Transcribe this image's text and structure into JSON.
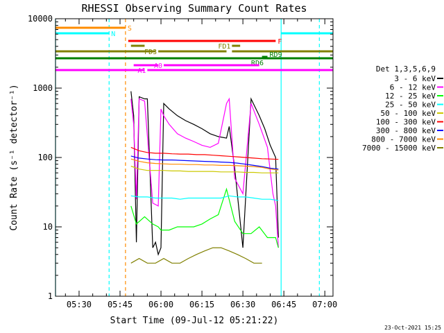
{
  "chart_data": {
    "type": "line",
    "title": "RHESSI Observing Summary Count Rates",
    "xlabel": "Start Time (09-Jul-12 05:21:22)",
    "ylabel": "Count Rate (s⁻¹ detector⁻¹)",
    "ylog": true,
    "xlim": [
      "05:21:22",
      "07:03:00"
    ],
    "ylim": [
      1,
      10000
    ],
    "x_ticks": [
      "05:30",
      "05:45",
      "06:00",
      "06:15",
      "06:30",
      "06:45",
      "07:00"
    ],
    "y_ticks": [
      "1",
      "10",
      "100",
      "1000",
      "10000"
    ],
    "legend_title": "Det 1,3,5,6,9",
    "legend_position": "right",
    "footer_date": "23-Oct-2021 15:25",
    "series": [
      {
        "name": "3 - 6 keV",
        "color": "#000000",
        "x": [
          "05:49",
          "05:50",
          "05:51",
          "05:52",
          "05:54",
          "05:55",
          "05:57",
          "05:58",
          "05:59",
          "06:00",
          "06:01",
          "06:03",
          "06:06",
          "06:09",
          "06:12",
          "06:15",
          "06:18",
          "06:21",
          "06:24",
          "06:25",
          "06:27",
          "06:30",
          "06:33",
          "06:36",
          "06:38",
          "06:40",
          "06:42",
          "06:43"
        ],
        "y": [
          900,
          400,
          6,
          750,
          700,
          700,
          5,
          6,
          4,
          5,
          600,
          500,
          400,
          340,
          300,
          260,
          220,
          200,
          190,
          280,
          70,
          5,
          700,
          400,
          260,
          150,
          100,
          7
        ]
      },
      {
        "name": "6 - 12 keV",
        "color": "#ff00ff",
        "x": [
          "05:49",
          "05:50",
          "05:51",
          "05:52",
          "05:54",
          "05:57",
          "05:59",
          "06:00",
          "06:01",
          "06:03",
          "06:06",
          "06:09",
          "06:12",
          "06:15",
          "06:18",
          "06:21",
          "06:24",
          "06:25",
          "06:27",
          "06:30",
          "06:33",
          "06:36",
          "06:39",
          "06:41",
          "06:42",
          "06:43"
        ],
        "y": [
          700,
          300,
          25,
          700,
          650,
          22,
          20,
          500,
          400,
          300,
          220,
          190,
          170,
          150,
          140,
          160,
          600,
          700,
          50,
          30,
          600,
          300,
          140,
          30,
          20,
          5
        ]
      },
      {
        "name": "12 - 25 keV",
        "color": "#00ff00",
        "x": [
          "05:49",
          "05:51",
          "05:54",
          "05:57",
          "05:59",
          "06:00",
          "06:03",
          "06:06",
          "06:09",
          "06:12",
          "06:15",
          "06:18",
          "06:21",
          "06:24",
          "06:27",
          "06:30",
          "06:33",
          "06:36",
          "06:39",
          "06:42",
          "06:43"
        ],
        "y": [
          20,
          11,
          14,
          11,
          10,
          9,
          9,
          10,
          10,
          10,
          11,
          13,
          15,
          35,
          12,
          8,
          8,
          10,
          7,
          7,
          5
        ]
      },
      {
        "name": "25 - 50 keV",
        "color": "#00ffff",
        "x": [
          "05:49",
          "05:52",
          "05:55",
          "05:58",
          "06:01",
          "06:04",
          "06:07",
          "06:10",
          "06:13",
          "06:16",
          "06:19",
          "06:22",
          "06:25",
          "06:28",
          "06:31",
          "06:34",
          "06:37",
          "06:40",
          "06:43"
        ],
        "y": [
          28,
          27,
          27,
          26,
          26,
          26,
          25,
          26,
          26,
          26,
          26,
          26,
          28,
          27,
          27,
          26,
          25,
          25,
          24
        ]
      },
      {
        "name": "50 - 100 keV",
        "color": "#ccc800",
        "x": [
          "05:49",
          "05:52",
          "05:55",
          "05:58",
          "06:01",
          "06:04",
          "06:07",
          "06:10",
          "06:13",
          "06:16",
          "06:19",
          "06:22",
          "06:25",
          "06:28",
          "06:31",
          "06:34",
          "06:37",
          "06:40",
          "06:43"
        ],
        "y": [
          75,
          68,
          65,
          65,
          65,
          64,
          64,
          63,
          63,
          63,
          63,
          62,
          62,
          62,
          61,
          61,
          60,
          60,
          60
        ]
      },
      {
        "name": "100 - 300 keV",
        "color": "#ff0000",
        "x": [
          "05:49",
          "05:52",
          "05:55",
          "05:58",
          "06:01",
          "06:04",
          "06:07",
          "06:10",
          "06:13",
          "06:16",
          "06:19",
          "06:22",
          "06:25",
          "06:28",
          "06:31",
          "06:34",
          "06:37",
          "06:40",
          "06:43"
        ],
        "y": [
          140,
          125,
          118,
          115,
          115,
          113,
          112,
          112,
          110,
          110,
          108,
          106,
          104,
          102,
          100,
          98,
          96,
          95,
          94
        ]
      },
      {
        "name": "300 - 800 keV",
        "color": "#0000ff",
        "x": [
          "05:49",
          "05:52",
          "05:55",
          "05:58",
          "06:01",
          "06:04",
          "06:07",
          "06:10",
          "06:13",
          "06:16",
          "06:19",
          "06:22",
          "06:25",
          "06:28",
          "06:31",
          "06:34",
          "06:37",
          "06:40",
          "06:43"
        ],
        "y": [
          105,
          98,
          95,
          93,
          92,
          92,
          91,
          90,
          89,
          88,
          87,
          86,
          85,
          83,
          80,
          77,
          74,
          70,
          68
        ]
      },
      {
        "name": "800 - 7000 keV",
        "color": "#ff8c00",
        "x": [
          "05:49",
          "05:52",
          "05:55",
          "05:58",
          "06:01",
          "06:04",
          "06:07",
          "06:10",
          "06:13",
          "06:16",
          "06:19",
          "06:22",
          "06:25",
          "06:28",
          "06:31",
          "06:34",
          "06:37",
          "06:40",
          "06:43"
        ],
        "y": [
          95,
          88,
          84,
          82,
          81,
          80,
          80,
          79,
          79,
          78,
          78,
          77,
          77,
          76,
          75,
          74,
          72,
          68,
          66
        ]
      },
      {
        "name": "7000 - 15000 keV",
        "color": "#808000",
        "x": [
          "05:49",
          "05:52",
          "05:55",
          "05:58",
          "06:01",
          "06:04",
          "06:07",
          "06:10",
          "06:13",
          "06:16",
          "06:19",
          "06:22",
          "06:25",
          "06:28",
          "06:31",
          "06:34",
          "06:37"
        ],
        "y": [
          3,
          3.5,
          3,
          3,
          3.5,
          3,
          3,
          3.5,
          4,
          4.5,
          5,
          5,
          4.5,
          4,
          3.5,
          3,
          3
        ]
      }
    ],
    "flag_bars": [
      {
        "label": "S",
        "color": "#ff8c00",
        "segments": [
          [
            "05:21:22",
            "05:47"
          ]
        ]
      },
      {
        "label": "N",
        "color": "#00ffff",
        "segments": [
          [
            "05:21:22",
            "05:41"
          ],
          [
            "06:44",
            "07:03"
          ]
        ]
      },
      {
        "label": "F",
        "color": "#ff0000",
        "segments": [
          [
            "05:48",
            "06:42"
          ]
        ]
      },
      {
        "label": "FD1",
        "color": "#808000",
        "segments": [
          [
            "05:49",
            "05:54"
          ],
          [
            "06:26",
            "06:29"
          ]
        ]
      },
      {
        "label": "FD3",
        "color": "#808000",
        "segments": [
          [
            "05:21:22",
            "05:58"
          ],
          [
            "05:59",
            "06:24"
          ],
          [
            "06:26",
            "07:03"
          ]
        ]
      },
      {
        "label": "RD9",
        "color": "#008000",
        "segments": [
          [
            "06:37",
            "06:39"
          ]
        ]
      },
      {
        "label": "RD6",
        "color": "#008000",
        "segments": [
          [
            "05:21:22",
            "07:03"
          ]
        ]
      },
      {
        "label": "A0",
        "color": "#ff00ff",
        "segments": [
          [
            "05:50",
            "05:59"
          ],
          [
            "06:01",
            "06:36"
          ]
        ]
      },
      {
        "label": "A1",
        "color": "#ff00ff",
        "segments": [
          [
            "05:21:22",
            "05:54"
          ],
          [
            "05:55",
            "07:03"
          ]
        ]
      }
    ],
    "vertical_markers": [
      {
        "time": "05:21:22",
        "color": "#00ffff",
        "style": "solid"
      },
      {
        "time": "05:41",
        "color": "#00ffff",
        "style": "dashed"
      },
      {
        "time": "05:47",
        "color": "#ff8c00",
        "style": "dashed"
      },
      {
        "time": "06:44",
        "color": "#00ffff",
        "style": "solid"
      },
      {
        "time": "06:58",
        "color": "#00ffff",
        "style": "dashed"
      }
    ]
  }
}
